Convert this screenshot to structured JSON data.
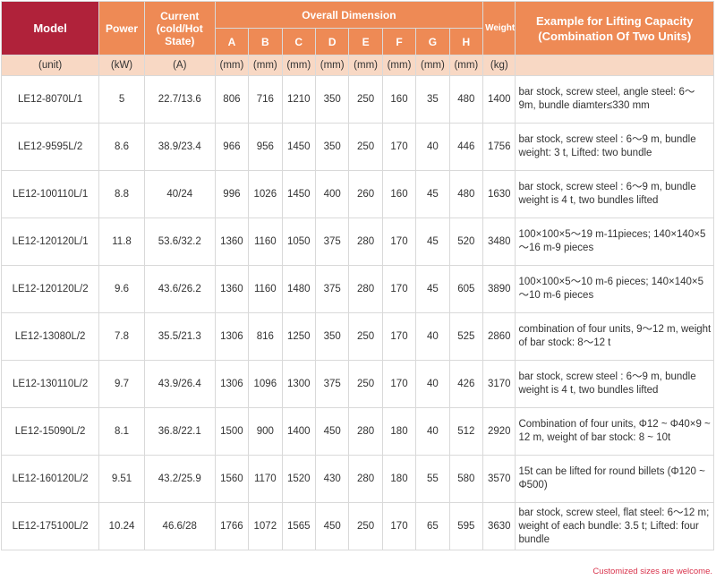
{
  "header": {
    "model": "Model",
    "power": "Power",
    "current": "Current (cold/Hot State)",
    "overall": "Overall Dimension",
    "dims": [
      "A",
      "B",
      "C",
      "D",
      "E",
      "F",
      "G",
      "H"
    ],
    "weight": "Weight",
    "example": "Example for Lifting Capacity (Combination Of Two Units)"
  },
  "units": {
    "model": "(unit)",
    "power": "(kW)",
    "current": "(A)",
    "dims": [
      "(mm)",
      "(mm)",
      "(mm)",
      "(mm)",
      "(mm)",
      "(mm)",
      "(mm)",
      "(mm)"
    ],
    "weight": "(kg)",
    "example": ""
  },
  "rows": [
    {
      "model": "LE12-8070L/1",
      "power": "5",
      "current": "22.7/13.6",
      "dims": [
        "806",
        "716",
        "1210",
        "350",
        "250",
        "160",
        "35",
        "480"
      ],
      "weight": "1400",
      "example": "bar stock, screw steel, angle steel: 6～9m, bundle diamter≤330 mm"
    },
    {
      "model": "LE12-9595L/2",
      "power": "8.6",
      "current": "38.9/23.4",
      "dims": [
        "966",
        "956",
        "1450",
        "350",
        "250",
        "170",
        "40",
        "446"
      ],
      "weight": "1756",
      "example": "bar stock, screw steel : 6～9 m, bundle weight: 3 t, Lifted: two bundle"
    },
    {
      "model": "LE12-100110L/1",
      "power": "8.8",
      "current": "40/24",
      "dims": [
        "996",
        "1026",
        "1450",
        "400",
        "260",
        "160",
        "45",
        "480"
      ],
      "weight": "1630",
      "example": "bar stock, screw steel : 6～9 m, bundle weight is 4 t, two bundles lifted"
    },
    {
      "model": "LE12-120120L/1",
      "power": "11.8",
      "current": "53.6/32.2",
      "dims": [
        "1360",
        "1160",
        "1050",
        "375",
        "280",
        "170",
        "45",
        "520"
      ],
      "weight": "3480",
      "example": "100×100×5～19 m-11pieces; 140×140×5～16 m-9 pieces"
    },
    {
      "model": "LE12-120120L/2",
      "power": "9.6",
      "current": "43.6/26.2",
      "dims": [
        "1360",
        "1160",
        "1480",
        "375",
        "280",
        "170",
        "45",
        "605"
      ],
      "weight": "3890",
      "example": "100×100×5～10 m-6 pieces; 140×140×5～10 m-6 pieces"
    },
    {
      "model": "LE12-13080L/2",
      "power": "7.8",
      "current": "35.5/21.3",
      "dims": [
        "1306",
        "816",
        "1250",
        "350",
        "250",
        "170",
        "40",
        "525"
      ],
      "weight": "2860",
      "example": "combination of four units, 9～12 m, weight of bar stock: 8～12 t"
    },
    {
      "model": "LE12-130110L/2",
      "power": "9.7",
      "current": "43.9/26.4",
      "dims": [
        "1306",
        "1096",
        "1300",
        "375",
        "250",
        "170",
        "40",
        "426"
      ],
      "weight": "3170",
      "example": "bar stock, screw steel : 6～9 m, bundle weight is 4 t, two bundles lifted"
    },
    {
      "model": "LE12-15090L/2",
      "power": "8.1",
      "current": "36.8/22.1",
      "dims": [
        "1500",
        "900",
        "1400",
        "450",
        "280",
        "180",
        "40",
        "512"
      ],
      "weight": "2920",
      "example": "Combination of four units, Φ12 ~ Φ40×9 ~ 12 m, weight of bar stock: 8 ~ 10t"
    },
    {
      "model": "LE12-160120L/2",
      "power": "9.51",
      "current": "43.2/25.9",
      "dims": [
        "1560",
        "1170",
        "1520",
        "430",
        "280",
        "180",
        "55",
        "580"
      ],
      "weight": "3570",
      "example": "15t can be lifted for round billets (Φ120 ~ Φ500)"
    },
    {
      "model": "LE12-175100L/2",
      "power": "10.24",
      "current": "46.6/28",
      "dims": [
        "1766",
        "1072",
        "1565",
        "450",
        "250",
        "170",
        "65",
        "595"
      ],
      "weight": "3630",
      "example": "bar stock, screw steel, flat steel: 6～12 m; weight of each bundle: 3.5 t; Lifted: four bundle"
    }
  ],
  "footnote": "Customized sizes are welcome."
}
